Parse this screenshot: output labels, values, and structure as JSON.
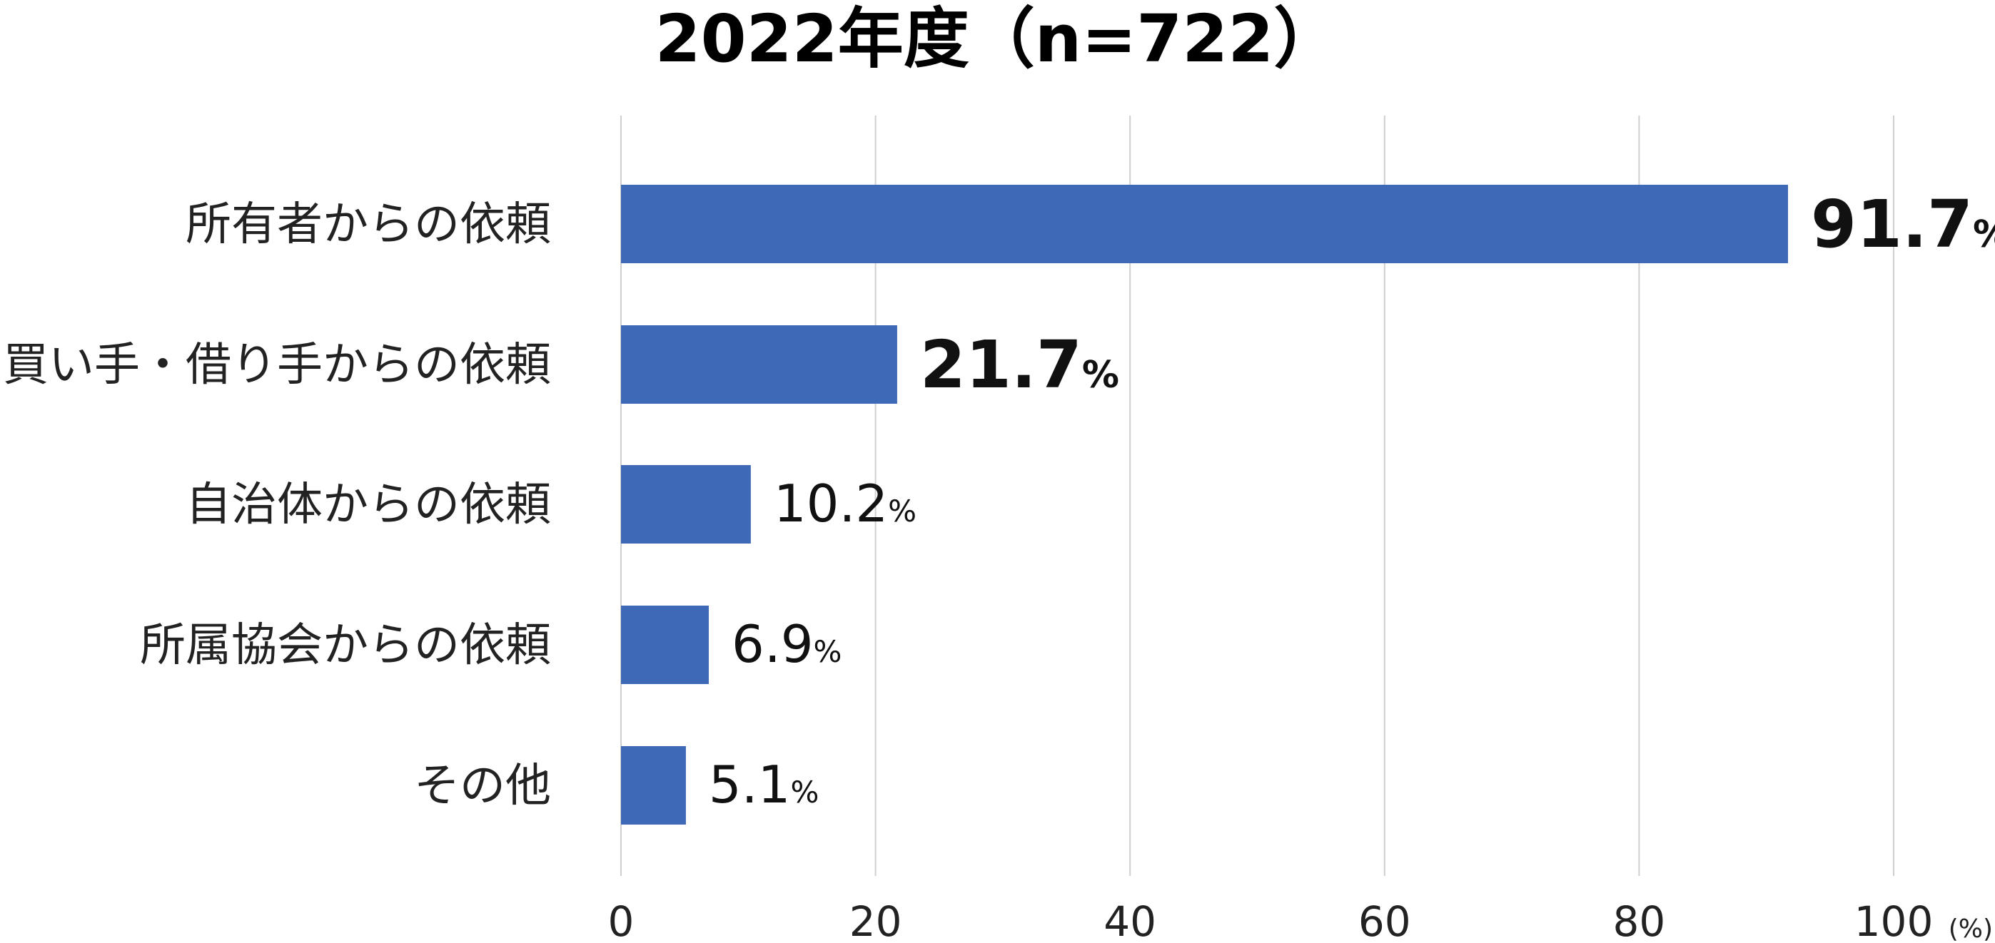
{
  "chart_data": {
    "type": "bar",
    "orientation": "horizontal",
    "title": "2022年度（n=722）",
    "categories": [
      "所有者からの依頼",
      "買い手・借り手からの依頼",
      "自治体からの依頼",
      "所属協会からの依頼",
      "その他"
    ],
    "values": [
      91.7,
      21.7,
      10.2,
      6.9,
      5.1
    ],
    "value_labels": [
      "91.7",
      "21.7",
      "10.2",
      "6.9",
      "5.1"
    ],
    "value_unit": "%",
    "emphasized": [
      true,
      true,
      false,
      false,
      false
    ],
    "xlim": [
      0,
      100
    ],
    "xticks": [
      0,
      20,
      40,
      60,
      80,
      100
    ],
    "xtick_labels": [
      "0",
      "20",
      "40",
      "60",
      "80",
      "100"
    ],
    "x_unit_label": "(%)",
    "grid": true,
    "bar_color": "#3d69b6"
  }
}
